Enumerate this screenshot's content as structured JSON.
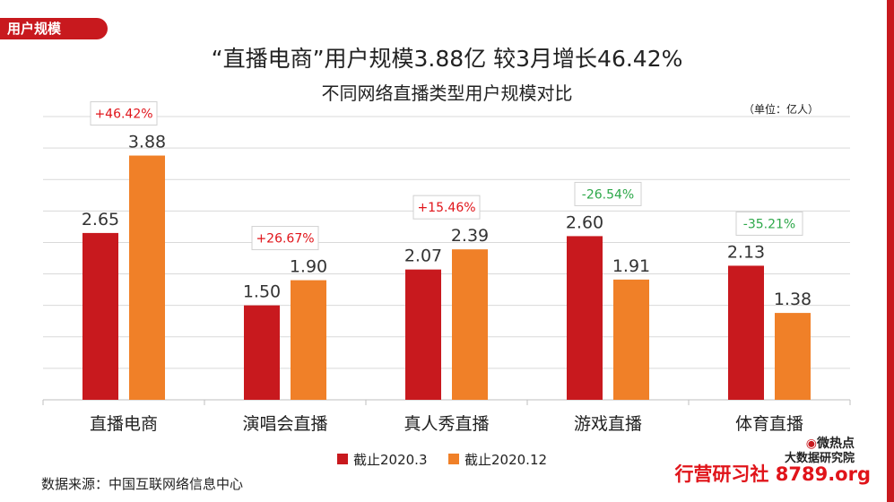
{
  "tab_label": "用户规模",
  "unit_label": "（单位：亿人）",
  "source_label": "数据来源：中国互联网络信息中心",
  "watermark": {
    "line1": "微热点",
    "line2": "大数据研究院",
    "line3": "行营研习社 8789.org"
  },
  "colors": {
    "series1": "#c8191e",
    "series2": "#f08028",
    "positive": "#e0141a",
    "negative": "#2ea84a"
  },
  "chart_data": {
    "type": "bar",
    "title": "“直播电商”用户规模3.88亿 较3月增长46.42%",
    "subtitle": "不同网络直播类型用户规模对比",
    "categories": [
      "直播电商",
      "演唱会直播",
      "真人秀直播",
      "游戏直播",
      "体育直播"
    ],
    "series": [
      {
        "name": "截止2020.3",
        "values": [
          2.65,
          1.5,
          2.07,
          2.6,
          2.13
        ]
      },
      {
        "name": "截止2020.12",
        "values": [
          3.88,
          1.9,
          2.39,
          1.91,
          1.38
        ]
      }
    ],
    "value_labels": [
      [
        "2.65",
        "1.50",
        "2.07",
        "2.60",
        "2.13"
      ],
      [
        "3.88",
        "1.90",
        "2.39",
        "1.91",
        "1.38"
      ]
    ],
    "changes": [
      "+46.42%",
      "+26.67%",
      "+15.46%",
      "-26.54%",
      "-35.21%"
    ],
    "ylim": [
      0,
      4.5
    ],
    "grid": true,
    "legend_position": "bottom"
  }
}
